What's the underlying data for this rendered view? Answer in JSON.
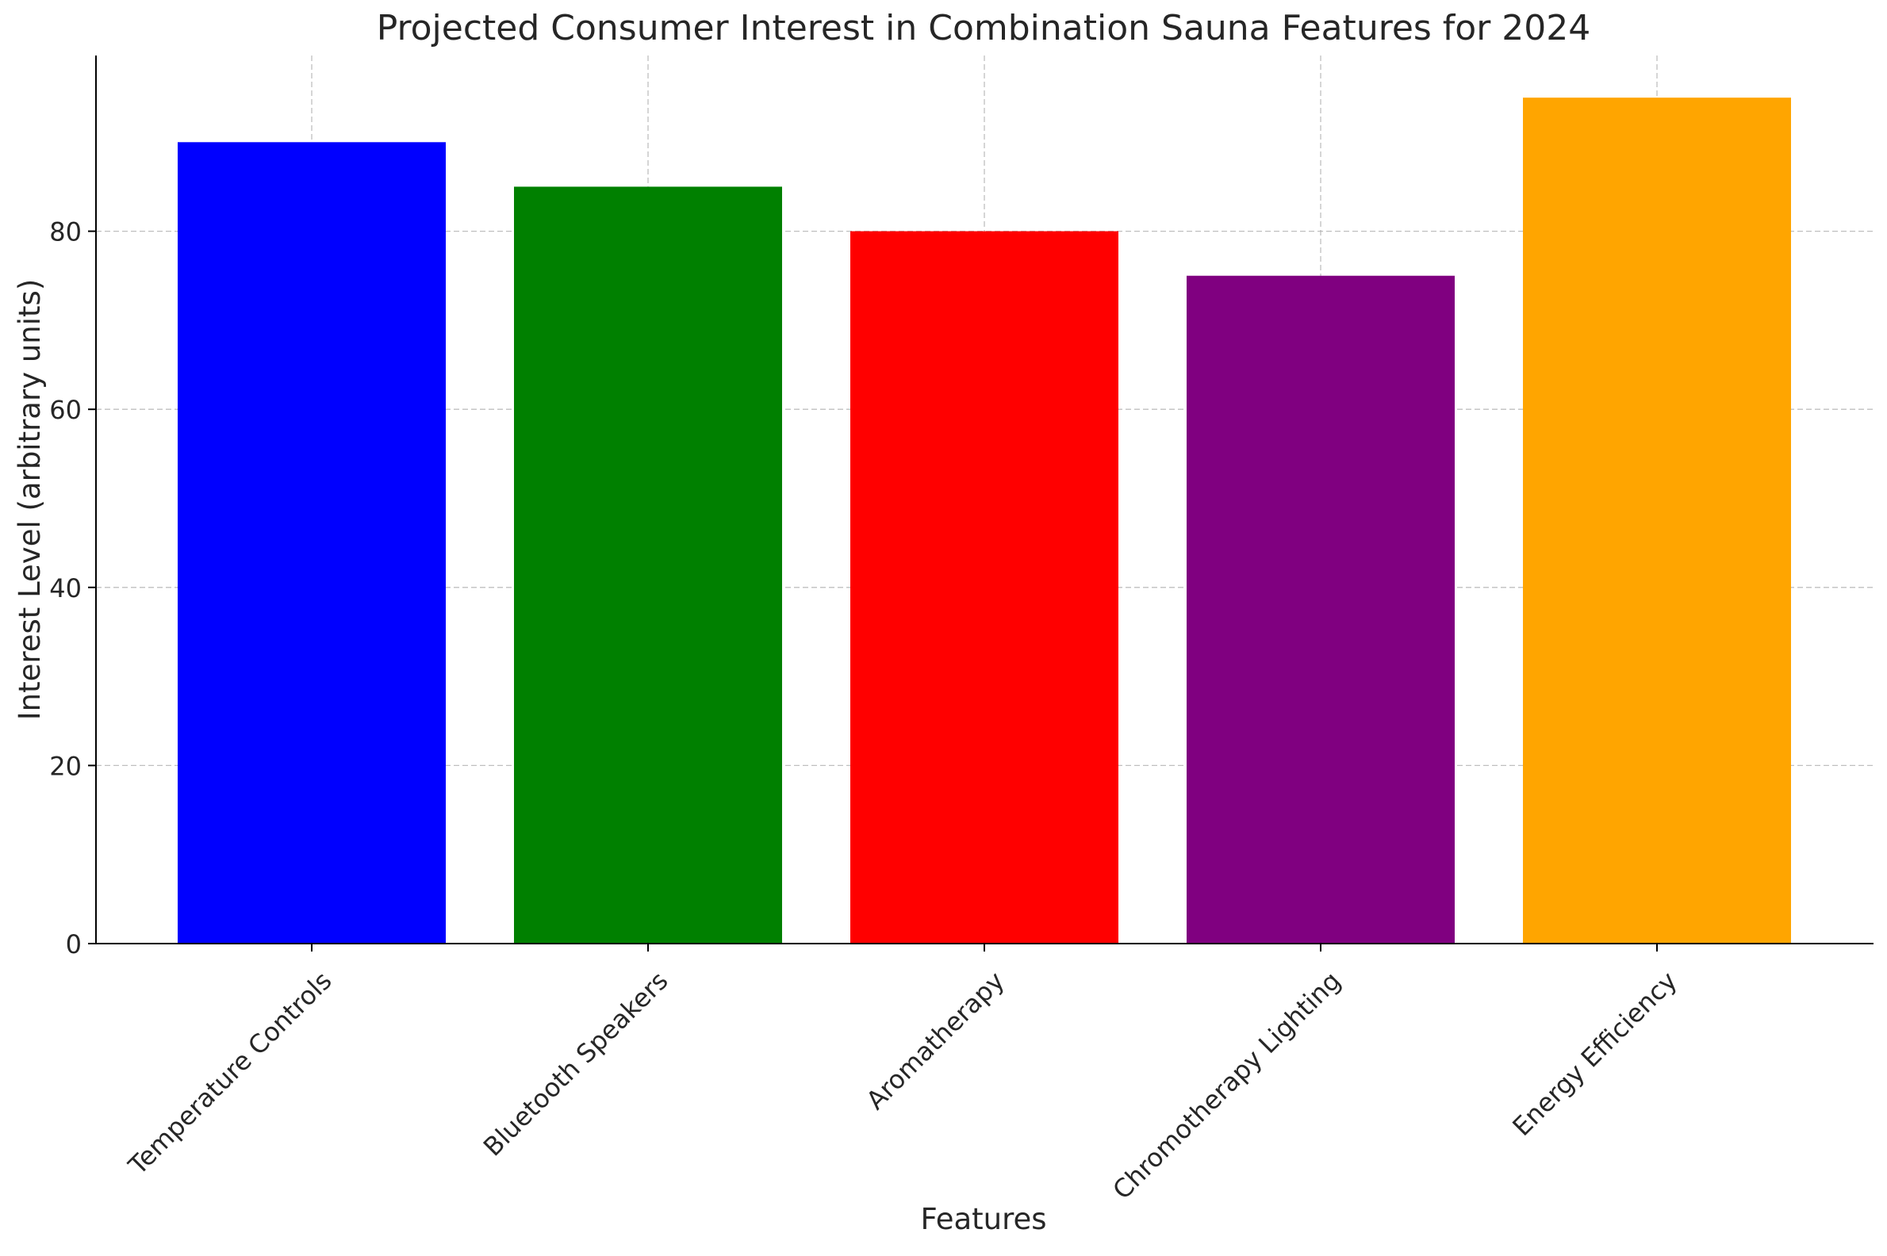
{
  "chart_data": {
    "type": "bar",
    "title": "Projected Consumer Interest in Combination Sauna Features for 2024",
    "xlabel": "Features",
    "ylabel": "Interest Level (arbitrary units)",
    "categories": [
      "Temperature Controls",
      "Bluetooth Speakers",
      "Aromatherapy",
      "Chromotherapy Lighting",
      "Energy Efficiency"
    ],
    "values": [
      90,
      85,
      80,
      75,
      95
    ],
    "colors": [
      "#0000ff",
      "#008000",
      "#ff0000",
      "#800080",
      "#ffa500"
    ],
    "ylim": [
      0,
      100
    ],
    "yticks": [
      0,
      20,
      40,
      60,
      80
    ],
    "grid": true,
    "legend": false
  }
}
